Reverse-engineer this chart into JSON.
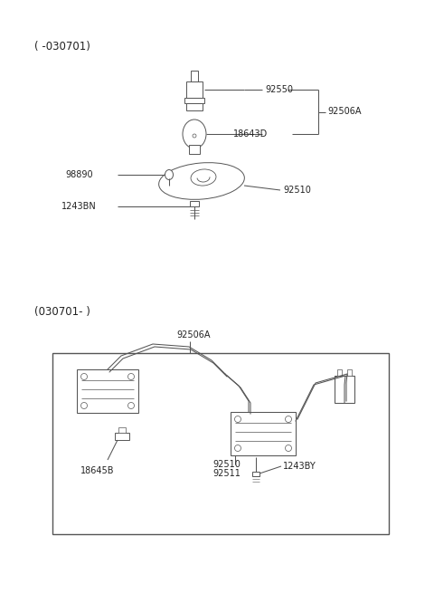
{
  "bg_color": "#ffffff",
  "fig_width": 4.8,
  "fig_height": 6.55,
  "dpi": 100,
  "top_label": "( -030701)",
  "bottom_label": "(030701- )",
  "top_parts": {
    "92550": "92550",
    "18643D": "18643D",
    "92506A": "92506A",
    "98890": "98890",
    "92510": "92510",
    "1243BN": "1243BN"
  },
  "bottom_parts": {
    "92506A": "92506A",
    "18645B": "18645B",
    "92510": "92510",
    "92511": "92511",
    "1243BY": "1243BY"
  },
  "line_color": "#555555",
  "text_color": "#222222",
  "font_size": 7.0
}
